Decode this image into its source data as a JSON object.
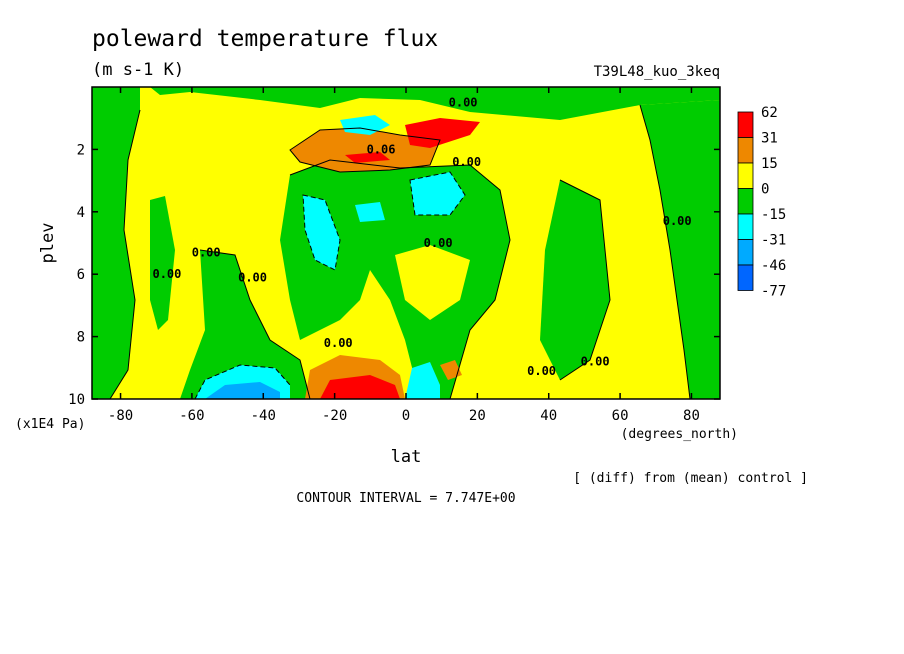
{
  "chart_data": {
    "type": "heatmap",
    "title": "poleward temperature flux",
    "units": "(m s-1 K)",
    "run_label": "T39L48_kuo_3keq",
    "xlabel": "lat",
    "x_units": "(degrees_north)",
    "ylabel": "plev",
    "y_units": "(x1E4 Pa)",
    "xlim": [
      -88,
      88
    ],
    "ylim": [
      10,
      0
    ],
    "x_ticks": [
      -80,
      -60,
      -40,
      -20,
      0,
      20,
      40,
      60,
      80
    ],
    "x_tick_labels": [
      "-80",
      "-60",
      "-40",
      "-20",
      "0",
      "20",
      "40",
      "60",
      "80"
    ],
    "y_ticks": [
      2,
      4,
      6,
      8,
      10
    ],
    "y_tick_labels": [
      "2",
      "4",
      "6",
      "8",
      "10"
    ],
    "colorbar": {
      "levels": [
        "62",
        "31",
        "15",
        "0",
        "-15",
        "-31",
        "-46",
        "-77"
      ],
      "colors": [
        "#ff0000",
        "#ee8800",
        "#ffff00",
        "#00cc00",
        "#00ffff",
        "#00aaff",
        "#0066ff"
      ]
    },
    "contour_labels": [
      {
        "text": "0.00",
        "lat": 16,
        "plev": 0.5
      },
      {
        "text": "0.00",
        "lat": 17,
        "plev": 2.4
      },
      {
        "text": "0.06",
        "lat": -7,
        "plev": 2.0
      },
      {
        "text": "0.00",
        "lat": 9,
        "plev": 5.0
      },
      {
        "text": "0.00",
        "lat": -67,
        "plev": 6.0
      },
      {
        "text": "0.00",
        "lat": -56,
        "plev": 5.3
      },
      {
        "text": "0.00",
        "lat": -43,
        "plev": 6.1
      },
      {
        "text": "0.00",
        "lat": -19,
        "plev": 8.2
      },
      {
        "text": "0.00",
        "lat": 38,
        "plev": 9.1
      },
      {
        "text": "0.00",
        "lat": 53,
        "plev": 8.8
      },
      {
        "text": "0.00",
        "lat": 76,
        "plev": 4.3
      }
    ],
    "regions": [
      {
        "value": "0 to 15",
        "color": "yellow",
        "area": "most of domain"
      },
      {
        "value": "-15 to 0",
        "color": "green",
        "area": "lat -88 to -76 all levels, lat -31 to 20 below plev 3, lat 55 to 88 upper levels"
      },
      {
        "value": "15 to 31",
        "color": "orange",
        "area": "lat -30 to 0 near plev 2 and near plev 10"
      },
      {
        "value": "31 to 62",
        "color": "red",
        "area": "lat 0 to 15 near plev 1.5, lat -25 to -5 near plev 9.8"
      },
      {
        "value": "-31 to -15",
        "color": "cyan",
        "area": "lat -28 to -18 plev 4-6, lat 0 to 15 plev 3-4, lat -55 to -30 near plev 9.5"
      },
      {
        "value": "-46 to -31",
        "color": "blue",
        "area": "lat -55 to -35 near plev 10"
      }
    ]
  },
  "footer": {
    "note": "[ (diff) from (mean) control ]",
    "contour_interval": "CONTOUR INTERVAL = 7.747E+00"
  }
}
